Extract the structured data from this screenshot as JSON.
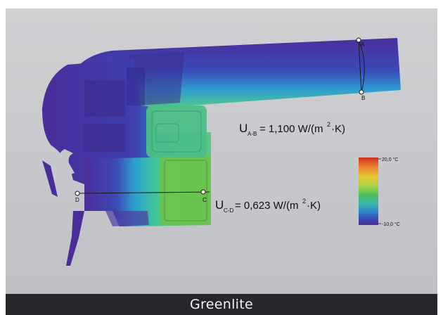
{
  "caption": "Greenlite",
  "colors": {
    "background": "#c9cacd",
    "caption_bar": "#25272b",
    "cold": "#3a2f8f",
    "warm": "#e07a1a"
  },
  "annotations": {
    "u_ab": {
      "prefix": "U",
      "sub": "A-B",
      "value": "= 1,100 W/(m",
      "sup": "2",
      "tail": "·K)"
    },
    "u_cd": {
      "prefix": "U",
      "sub": "C-D",
      "value": "= 0,623 W/(m",
      "sup": "2",
      "tail": "·K)"
    },
    "points": {
      "a": "A",
      "b": "B",
      "c": "C",
      "d": "D"
    }
  },
  "legend": {
    "max_label": "20,0 °C",
    "min_label": "-10,0 °C"
  }
}
